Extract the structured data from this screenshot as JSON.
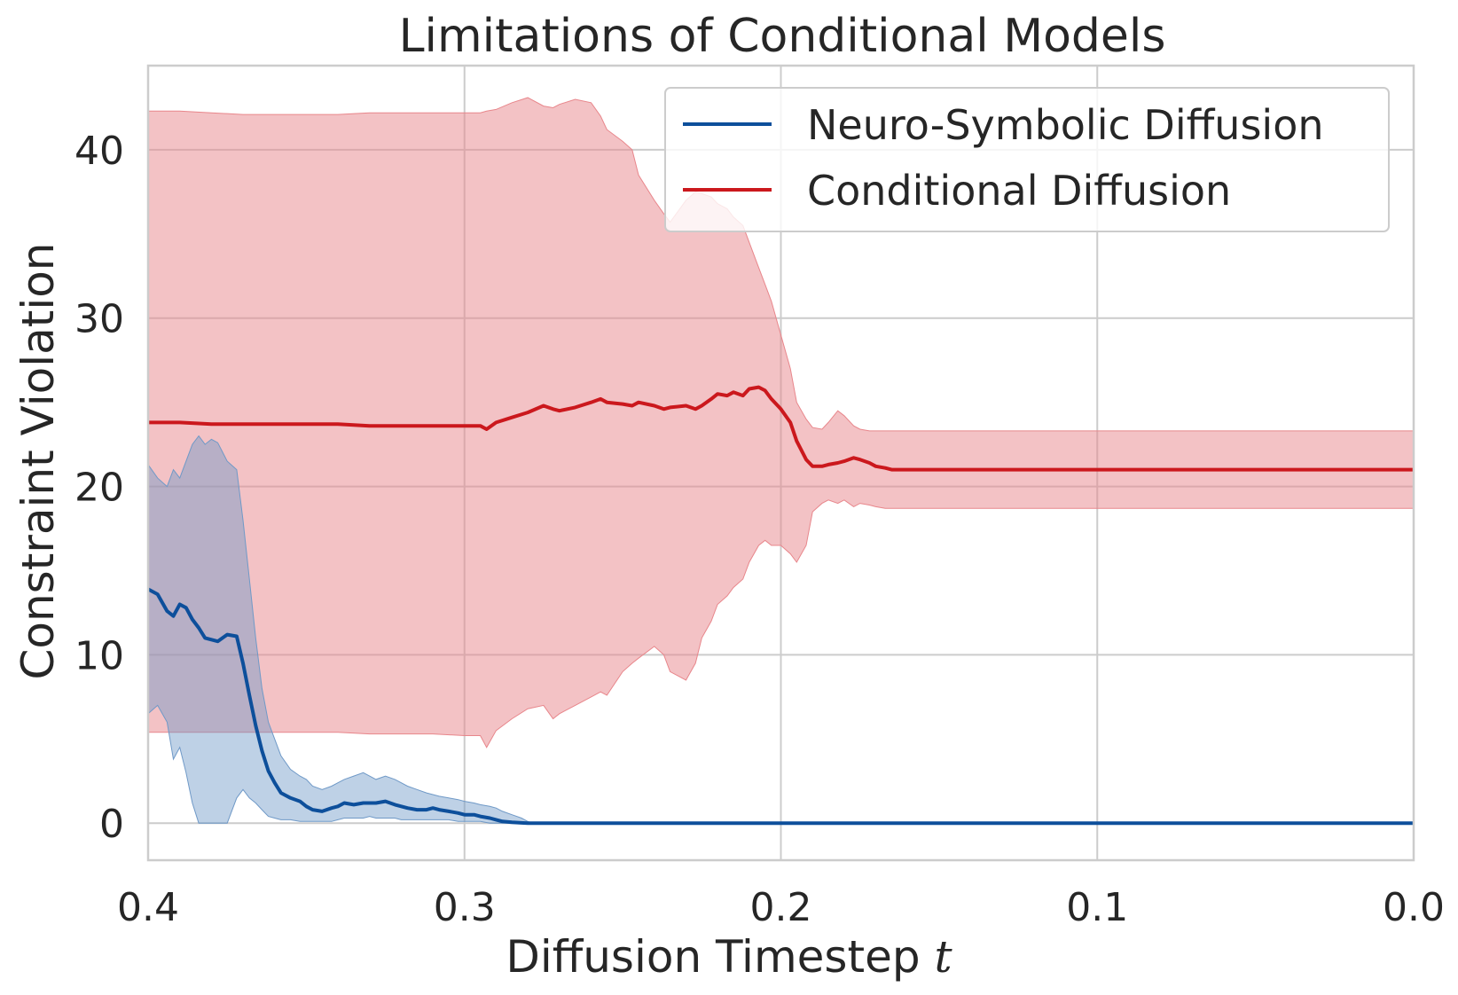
{
  "chart_data": {
    "type": "line",
    "title": "Limitations of Conditional Models",
    "xlabel": "Diffusion Timestep",
    "xlabel_var": "t",
    "ylabel": "Constraint Violation",
    "xlim": [
      0.4,
      0.0
    ],
    "ylim": [
      -2.2,
      45
    ],
    "x_ticks": [
      0.4,
      0.3,
      0.2,
      0.1,
      0.0
    ],
    "x_tick_labels": [
      "0.4",
      "0.3",
      "0.2",
      "0.1",
      "0.0"
    ],
    "y_ticks": [
      0,
      10,
      20,
      30,
      40
    ],
    "y_tick_labels": [
      "0",
      "10",
      "20",
      "30",
      "40"
    ],
    "grid": true,
    "legend_position": "top-right",
    "series": [
      {
        "name": "Neuro-Symbolic Diffusion",
        "color": "#0d4f9b",
        "band_color": "#6f99c7",
        "x": [
          0.4,
          0.397,
          0.394,
          0.392,
          0.39,
          0.388,
          0.386,
          0.384,
          0.382,
          0.38,
          0.378,
          0.375,
          0.372,
          0.37,
          0.368,
          0.366,
          0.364,
          0.362,
          0.36,
          0.358,
          0.355,
          0.352,
          0.35,
          0.348,
          0.345,
          0.342,
          0.34,
          0.338,
          0.335,
          0.332,
          0.33,
          0.328,
          0.325,
          0.322,
          0.32,
          0.318,
          0.315,
          0.312,
          0.31,
          0.308,
          0.305,
          0.302,
          0.3,
          0.297,
          0.295,
          0.292,
          0.29,
          0.288,
          0.285,
          0.282,
          0.28,
          0.278,
          0.275,
          0.25,
          0.2,
          0.15,
          0.1,
          0.05,
          0.0
        ],
        "mean": [
          13.9,
          13.6,
          12.6,
          12.3,
          13.0,
          12.8,
          12.1,
          11.6,
          11.0,
          10.9,
          10.8,
          11.2,
          11.1,
          9.5,
          7.6,
          5.8,
          4.3,
          3.1,
          2.4,
          1.8,
          1.5,
          1.3,
          1.0,
          0.8,
          0.7,
          0.9,
          1.0,
          1.2,
          1.1,
          1.2,
          1.2,
          1.2,
          1.3,
          1.1,
          1.0,
          0.9,
          0.8,
          0.8,
          0.9,
          0.8,
          0.7,
          0.6,
          0.5,
          0.5,
          0.4,
          0.3,
          0.2,
          0.1,
          0.05,
          0.02,
          0,
          0,
          0,
          0,
          0,
          0,
          0,
          0,
          0
        ],
        "lower": [
          6.5,
          7.0,
          6.0,
          3.8,
          4.5,
          3.0,
          1.2,
          0.0,
          0.0,
          0.0,
          0.0,
          0.0,
          1.5,
          2.0,
          1.5,
          1.2,
          0.8,
          0.4,
          0.3,
          0.2,
          0.2,
          0.1,
          0.1,
          0.1,
          0.1,
          0.1,
          0.2,
          0.3,
          0.3,
          0.3,
          0.4,
          0.3,
          0.3,
          0.3,
          0.2,
          0.2,
          0.2,
          0.2,
          0.2,
          0.2,
          0.2,
          0.1,
          0.1,
          0.1,
          0.1,
          0.0,
          0.0,
          0.0,
          0.0,
          0.0,
          0,
          0,
          0,
          0,
          0,
          0,
          0,
          0,
          0
        ],
        "upper": [
          21.3,
          20.5,
          20.0,
          21.0,
          20.5,
          21.5,
          22.5,
          23.0,
          22.5,
          22.8,
          22.6,
          21.5,
          21.0,
          18.0,
          14.5,
          11.0,
          8.0,
          6.0,
          5.0,
          4.0,
          3.2,
          2.8,
          2.6,
          2.2,
          2.0,
          2.2,
          2.4,
          2.6,
          2.8,
          3.0,
          2.8,
          2.6,
          2.8,
          2.6,
          2.4,
          2.2,
          2.0,
          1.8,
          1.7,
          1.6,
          1.5,
          1.4,
          1.3,
          1.2,
          1.1,
          1.0,
          0.9,
          0.7,
          0.5,
          0.3,
          0.1,
          0,
          0,
          0,
          0,
          0,
          0,
          0,
          0
        ]
      },
      {
        "name": "Conditional Diffusion",
        "color": "#cb181d",
        "band_color": "#e8868b",
        "x": [
          0.4,
          0.39,
          0.38,
          0.37,
          0.36,
          0.35,
          0.34,
          0.33,
          0.32,
          0.31,
          0.3,
          0.295,
          0.293,
          0.29,
          0.285,
          0.28,
          0.275,
          0.272,
          0.27,
          0.265,
          0.26,
          0.257,
          0.255,
          0.25,
          0.247,
          0.245,
          0.24,
          0.237,
          0.235,
          0.23,
          0.227,
          0.225,
          0.222,
          0.22,
          0.217,
          0.215,
          0.212,
          0.21,
          0.207,
          0.205,
          0.203,
          0.2,
          0.197,
          0.195,
          0.192,
          0.19,
          0.187,
          0.185,
          0.182,
          0.18,
          0.177,
          0.175,
          0.172,
          0.17,
          0.167,
          0.165,
          0.15,
          0.1,
          0.05,
          0.0
        ],
        "mean": [
          23.8,
          23.8,
          23.7,
          23.7,
          23.7,
          23.7,
          23.7,
          23.6,
          23.6,
          23.6,
          23.6,
          23.6,
          23.4,
          23.8,
          24.1,
          24.4,
          24.8,
          24.6,
          24.5,
          24.7,
          25.0,
          25.2,
          25.0,
          24.9,
          24.8,
          25.0,
          24.8,
          24.6,
          24.7,
          24.8,
          24.6,
          24.8,
          25.2,
          25.5,
          25.4,
          25.6,
          25.4,
          25.8,
          25.9,
          25.7,
          25.2,
          24.6,
          23.8,
          22.7,
          21.6,
          21.2,
          21.2,
          21.3,
          21.4,
          21.5,
          21.7,
          21.6,
          21.4,
          21.2,
          21.1,
          21.0,
          21.0,
          21.0,
          21.0,
          21.0
        ],
        "lower": [
          5.4,
          5.4,
          5.4,
          5.4,
          5.4,
          5.4,
          5.4,
          5.3,
          5.3,
          5.3,
          5.2,
          5.2,
          4.5,
          5.5,
          6.2,
          6.8,
          7.0,
          6.2,
          6.5,
          7.0,
          7.5,
          7.8,
          7.6,
          9.0,
          9.5,
          9.8,
          10.5,
          10.0,
          9.0,
          8.5,
          9.5,
          11.0,
          12.0,
          13.0,
          13.5,
          14.0,
          14.5,
          15.5,
          16.5,
          16.8,
          16.5,
          16.5,
          16.0,
          15.5,
          16.5,
          18.5,
          19.0,
          19.2,
          19.0,
          19.2,
          18.8,
          19.0,
          18.9,
          18.8,
          18.7,
          18.7,
          18.7,
          18.7,
          18.7,
          18.7
        ],
        "upper": [
          42.3,
          42.3,
          42.2,
          42.1,
          42.1,
          42.1,
          42.1,
          42.2,
          42.2,
          42.2,
          42.2,
          42.2,
          42.3,
          42.4,
          42.8,
          43.1,
          42.6,
          42.5,
          42.7,
          43.0,
          42.8,
          42.0,
          41.2,
          40.5,
          40.0,
          38.5,
          37.0,
          36.2,
          35.7,
          37.0,
          37.5,
          37.4,
          37.2,
          36.8,
          36.5,
          36.0,
          35.5,
          34.5,
          33.0,
          32.0,
          31.0,
          29.0,
          27.0,
          25.0,
          24.0,
          23.5,
          23.4,
          23.8,
          24.5,
          24.2,
          23.6,
          23.4,
          23.3,
          23.3,
          23.3,
          23.3,
          23.3,
          23.3,
          23.3,
          23.3
        ]
      }
    ]
  }
}
